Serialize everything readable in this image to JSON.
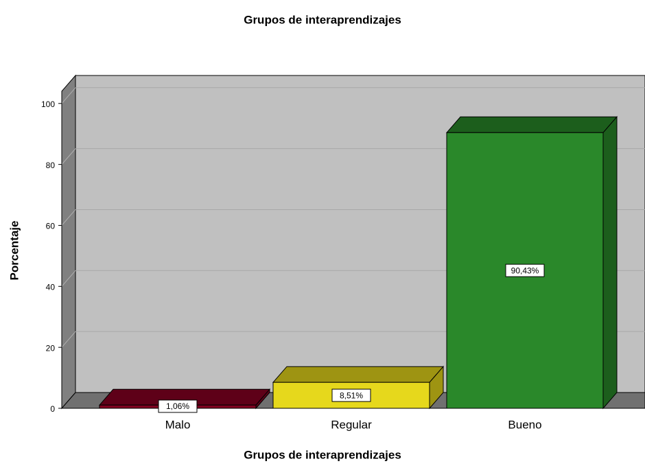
{
  "chart_data": {
    "type": "bar3d",
    "title": "Grupos de interaprendizajes",
    "x_label": "Grupos de interaprendizajes",
    "y_label": "Porcentaje",
    "categories": [
      "Malo",
      "Regular",
      "Bueno"
    ],
    "values": [
      1.06,
      8.51,
      90.43
    ],
    "value_labels": [
      "1,06%",
      "8,51%",
      "90,43%"
    ],
    "colors": [
      "#7f0020",
      "#e6d81c",
      "#2a882a"
    ],
    "top_colors": [
      "#5e0018",
      "#9e9412",
      "#1c5e1c"
    ],
    "ylim": [
      0,
      104
    ],
    "yticks": [
      0,
      20,
      40,
      60,
      80,
      100
    ],
    "grid": true
  }
}
